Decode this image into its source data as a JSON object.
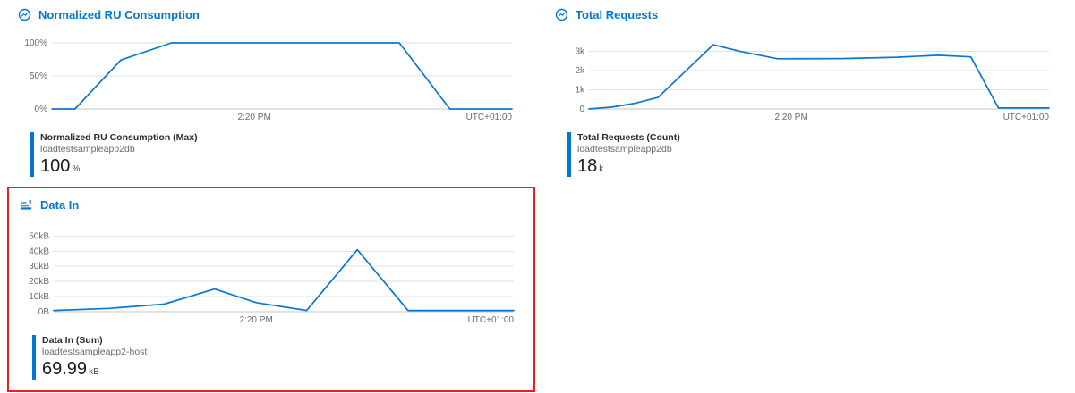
{
  "colors": {
    "title_blue": "#0078d4",
    "series_blue": "#0a77d0",
    "highlight_red": "#e8211d"
  },
  "chart_data": [
    {
      "type": "line",
      "title": "Normalized RU Consumption",
      "ylim": [
        0,
        100
      ],
      "grid": true,
      "legend_position": "bottom-left",
      "yticks": [
        {
          "value": 0,
          "label": "0%"
        },
        {
          "value": 50,
          "label": "50%"
        },
        {
          "value": 100,
          "label": "100%"
        }
      ],
      "xticks": [
        {
          "pos": 0.44,
          "label": "2:20 PM",
          "anchor": "middle"
        },
        {
          "pos": 1,
          "label": "UTC+01:00",
          "anchor": "end"
        }
      ],
      "points": [
        [
          0,
          0
        ],
        [
          0.05,
          0
        ],
        [
          0.15,
          74
        ],
        [
          0.26,
          100
        ],
        [
          0.755,
          100
        ],
        [
          0.865,
          0
        ],
        [
          1,
          0
        ]
      ],
      "legend": {
        "metric": "Normalized RU Consumption (Max)",
        "resource": "loadtestsampleapp2db",
        "value": "100",
        "unit": "%"
      }
    },
    {
      "type": "line",
      "title": "Total Requests",
      "ylim": [
        0,
        3.45
      ],
      "grid": true,
      "legend_position": "bottom-left",
      "yticks": [
        {
          "value": 0,
          "label": "0"
        },
        {
          "value": 1,
          "label": "1k"
        },
        {
          "value": 2,
          "label": "2k"
        },
        {
          "value": 3,
          "label": "3k"
        }
      ],
      "xticks": [
        {
          "pos": 0.44,
          "label": "2:20 PM",
          "anchor": "middle"
        },
        {
          "pos": 1,
          "label": "UTC+01:00",
          "anchor": "end"
        }
      ],
      "points": [
        [
          0,
          0
        ],
        [
          0.05,
          0.1
        ],
        [
          0.1,
          0.3
        ],
        [
          0.15,
          0.6
        ],
        [
          0.27,
          3.35
        ],
        [
          0.33,
          3.0
        ],
        [
          0.41,
          2.62
        ],
        [
          0.55,
          2.63
        ],
        [
          0.67,
          2.7
        ],
        [
          0.76,
          2.8
        ],
        [
          0.83,
          2.72
        ],
        [
          0.89,
          0.05
        ],
        [
          1,
          0.05
        ]
      ],
      "legend": {
        "metric": "Total Requests (Count)",
        "resource": "loadtestsampleapp2db",
        "value": "18",
        "unit": "k"
      }
    },
    {
      "type": "line",
      "title": "Data In",
      "highlighted": true,
      "ylim": [
        0,
        52
      ],
      "grid": true,
      "legend_position": "bottom-left",
      "yticks": [
        {
          "value": 0,
          "label": "0B"
        },
        {
          "value": 10,
          "label": "10kB"
        },
        {
          "value": 20,
          "label": "20kB"
        },
        {
          "value": 30,
          "label": "30kB"
        },
        {
          "value": 40,
          "label": "40kB"
        },
        {
          "value": 50,
          "label": "50kB"
        }
      ],
      "xticks": [
        {
          "pos": 0.44,
          "label": "2:20 PM",
          "anchor": "middle"
        },
        {
          "pos": 1,
          "label": "UTC+01:00",
          "anchor": "end"
        }
      ],
      "points": [
        [
          0,
          0.8
        ],
        [
          0.12,
          2.2
        ],
        [
          0.24,
          5
        ],
        [
          0.35,
          15
        ],
        [
          0.44,
          6
        ],
        [
          0.55,
          0.8
        ],
        [
          0.66,
          41
        ],
        [
          0.77,
          0.8
        ],
        [
          1,
          0.8
        ]
      ],
      "legend": {
        "metric": "Data In (Sum)",
        "resource": "loadtestsampleapp2-host",
        "value": "69.99",
        "unit": "kB"
      }
    }
  ]
}
